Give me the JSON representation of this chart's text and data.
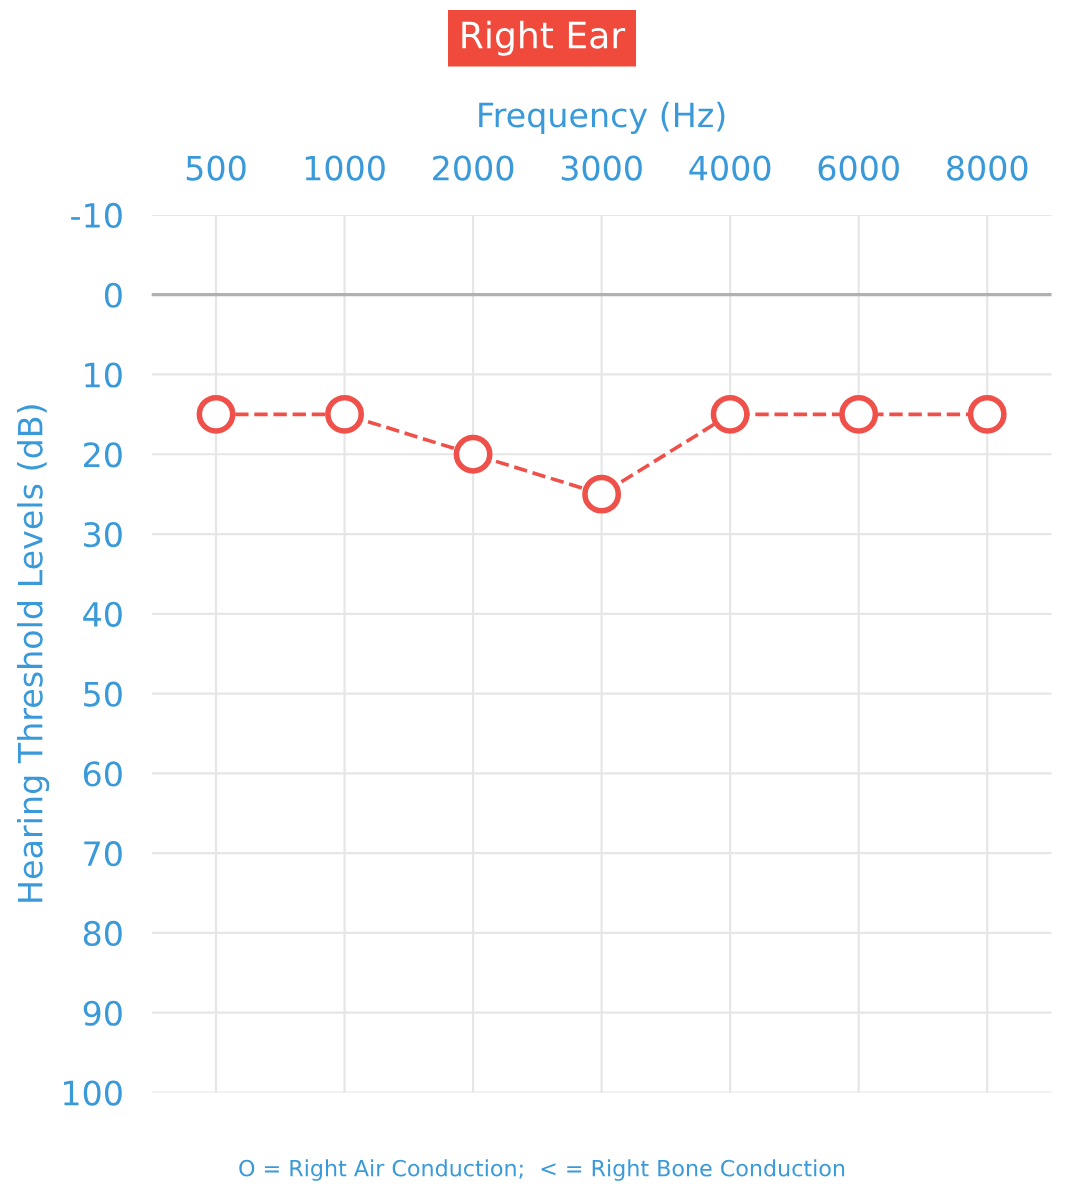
{
  "chart_data": {
    "type": "line",
    "title": "Right Ear",
    "xlabel": "Frequency (Hz)",
    "ylabel": "Hearing Threshold Levels (dB)",
    "categories": [
      "500",
      "1000",
      "2000",
      "3000",
      "4000",
      "6000",
      "8000"
    ],
    "series": [
      {
        "color": "#f0504a",
        "values": [
          15,
          15,
          20,
          25,
          15,
          15,
          15
        ]
      }
    ],
    "ylim": [
      100,
      -10
    ],
    "yticks": [
      -10,
      0,
      10,
      20,
      30,
      40,
      50,
      60,
      70,
      80,
      90,
      100
    ],
    "grid": true,
    "marker": "circle",
    "line_style": "dashed",
    "legend": false,
    "ref_lines": [
      {
        "axis": "y",
        "value": 0,
        "color": "#b0b0b0"
      }
    ],
    "annotations": [
      "O = Right Air Conduction;  < = Right Bone Conduction"
    ]
  }
}
